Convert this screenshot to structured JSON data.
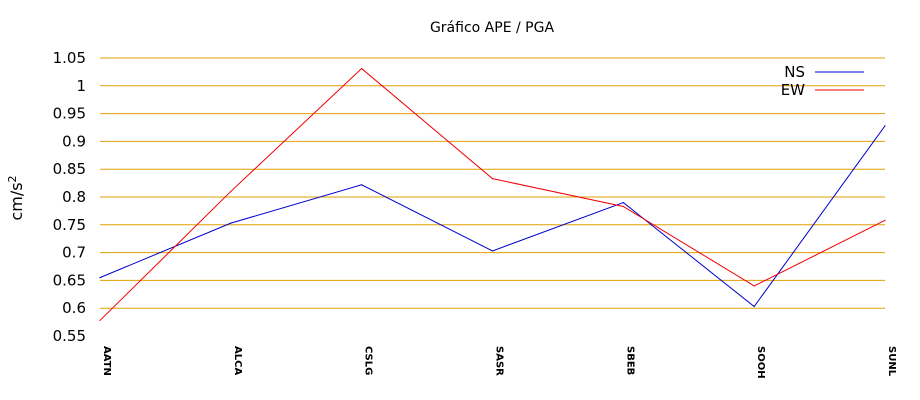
{
  "chart_data": {
    "type": "line",
    "title": "Gráfico  APE / PGA",
    "xlabel": "",
    "ylabel": "cm/s",
    "ylabel_superscript": "2",
    "categories": [
      "AATN",
      "ALCA",
      "CSLG",
      "SASR",
      "SBEB",
      "SOOH",
      "SUNL"
    ],
    "ylim": [
      0.55,
      1.05
    ],
    "yticks": [
      "0.55",
      "0.6",
      "0.65",
      "0.7",
      "0.75",
      "0.8",
      "0.85",
      "0.9",
      "0.95",
      "1",
      "1.05"
    ],
    "grid": true,
    "legend_position": "top-right",
    "series": [
      {
        "name": "NS",
        "color": "#0000cc",
        "values": [
          0.655,
          0.753,
          0.822,
          0.703,
          0.79,
          0.603,
          0.928
        ]
      },
      {
        "name": "EW",
        "color": "#ee0000",
        "values": [
          0.578,
          0.81,
          1.031,
          0.833,
          0.783,
          0.64,
          0.758
        ]
      }
    ],
    "grid_color": "#e0a000"
  }
}
